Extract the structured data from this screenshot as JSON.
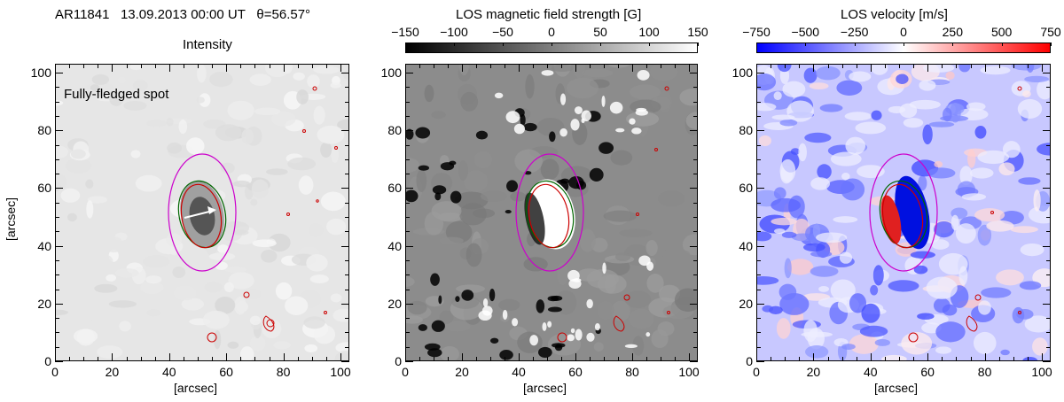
{
  "header": {
    "region": "AR11841",
    "date": "13.09.2013 00:00 UT",
    "theta": "θ=56.57°"
  },
  "panels": [
    {
      "id": "intensity",
      "title": "Intensity",
      "annotation": "Fully-fledged spot",
      "xlabel": "[arcsec]",
      "ylabel": "[arcsec]",
      "xticks": [
        "0",
        "20",
        "40",
        "60",
        "80",
        "100"
      ],
      "yticks": [
        "0",
        "20",
        "40",
        "60",
        "80",
        "100"
      ]
    },
    {
      "id": "magnetic",
      "title": "LOS magnetic field strength [G]",
      "xlabel": "[arcsec]",
      "xticks": [
        "0",
        "20",
        "40",
        "60",
        "80",
        "100"
      ],
      "yticks": [
        "0",
        "20",
        "40",
        "60",
        "80",
        "100"
      ],
      "colorbar": {
        "ticks": [
          "−150",
          "−100",
          "−50",
          "0",
          "50",
          "100",
          "150"
        ],
        "min": -150,
        "max": 150,
        "colors": [
          "#000000",
          "#ffffff"
        ]
      }
    },
    {
      "id": "velocity",
      "title": "LOS velocity [m/s]",
      "xlabel": "[arcsec]",
      "xticks": [
        "0",
        "20",
        "40",
        "60",
        "80",
        "100"
      ],
      "yticks": [
        "0",
        "20",
        "40",
        "60",
        "80",
        "100"
      ],
      "colorbar": {
        "ticks": [
          "−750",
          "−500",
          "−250",
          "0",
          "250",
          "500",
          "750"
        ],
        "min": -750,
        "max": 750,
        "colors": [
          "#0000ff",
          "#ffffff",
          "#ff0000"
        ]
      }
    }
  ],
  "contour_colors": {
    "umbra": "#cc0000",
    "penumbra": "#006600",
    "ellipse": "#cc00cc"
  }
}
